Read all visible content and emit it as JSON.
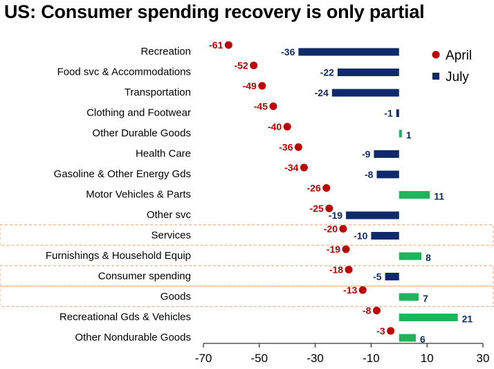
{
  "title": "US: Consumer spending recovery is only partial",
  "chart_data": {
    "type": "bar",
    "title": "US: Consumer spending recovery is only partial",
    "categories": [
      "Recreation",
      "Food svc & Accommodations",
      "Transportation",
      "Clothing and Footwear",
      "Other Durable Goods",
      "Health Care",
      "Gasoline & Other Energy Gds",
      "Motor Vehicles & Parts",
      "Other svc",
      "Services",
      "Furnishings & Household Equip",
      "Consumer spending",
      "Goods",
      "Recreational Gds & Vehicles",
      "Other Nondurable Goods"
    ],
    "series": [
      {
        "name": "April",
        "mark": "dot",
        "values": [
          -61,
          -52,
          -49,
          -45,
          -40,
          -36,
          -34,
          -26,
          -25,
          -20,
          -19,
          -18,
          -13,
          -8,
          -3
        ]
      },
      {
        "name": "July",
        "mark": "bar",
        "values": [
          -36,
          -22,
          -24,
          -1,
          1,
          -9,
          -8,
          11,
          -19,
          -10,
          8,
          -5,
          7,
          21,
          6
        ]
      }
    ],
    "highlighted_categories": [
      "Services",
      "Consumer spending",
      "Goods"
    ],
    "xlim": [
      -70,
      30
    ],
    "xticks": [
      -70,
      -50,
      -30,
      -10,
      10,
      30
    ],
    "grid": false,
    "legend_position": "top-right",
    "colors": {
      "april": "#C00000",
      "july_negative": "#0F2A6B",
      "july_positive": "#1EB45A",
      "highlight_border": "#F4B183",
      "axis": "#000000"
    }
  }
}
